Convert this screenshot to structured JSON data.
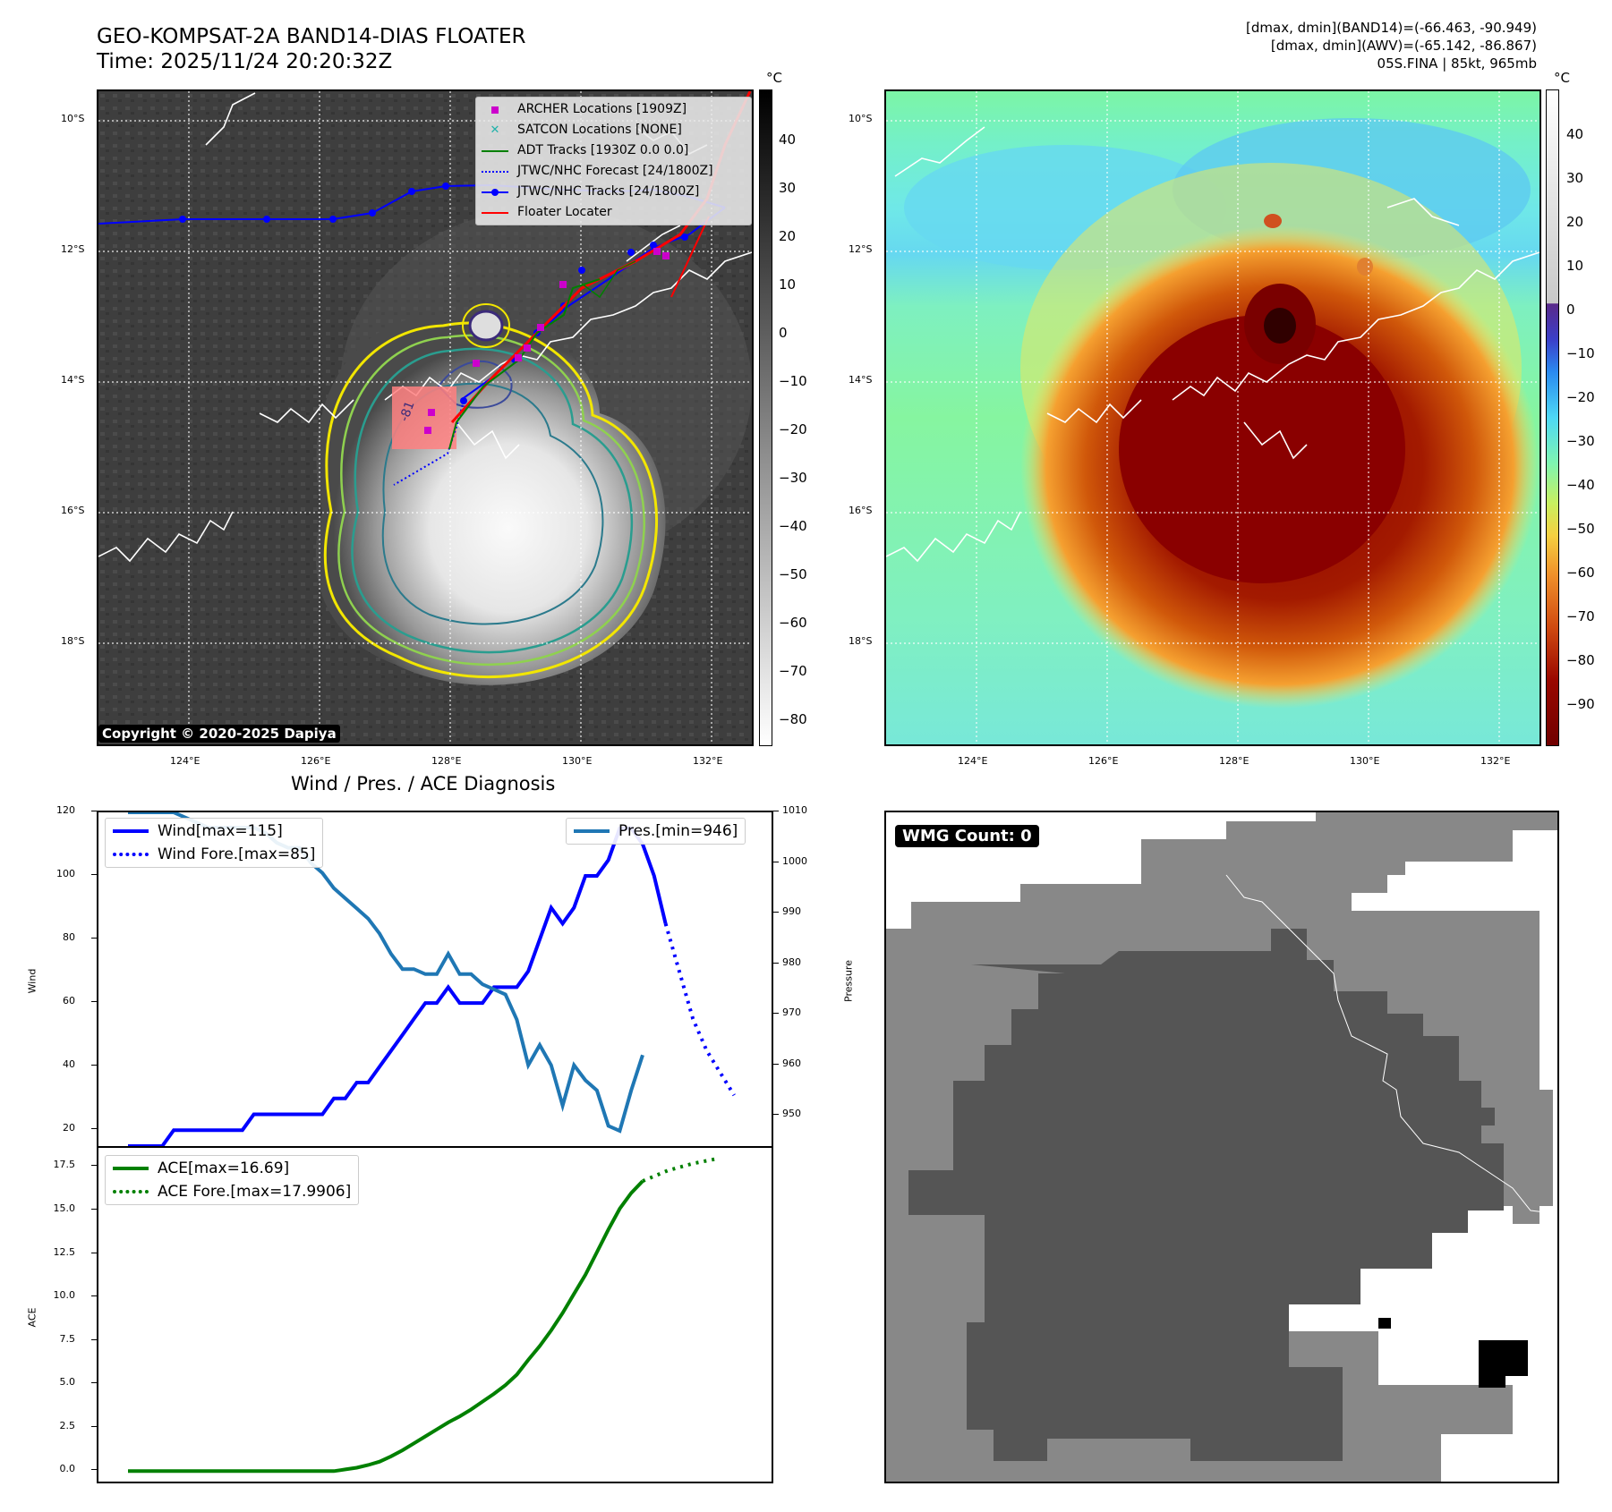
{
  "header": {
    "title_line1": "GEO-KOMPSAT-2A BAND14-DIAS FLOATER",
    "title_line2": "Time: 2025/11/24 20:20:32Z",
    "info_line1": "[dmax, dmin](BAND14)=(-66.463, -90.949)",
    "info_line2": "[dmax, dmin](AWV)=(-65.142, -86.867)",
    "info_line3": "05S.FINA | 85kt, 965mb"
  },
  "map_axes": {
    "lat_labels": [
      "10°S",
      "12°S",
      "14°S",
      "16°S",
      "18°S"
    ],
    "lon_labels": [
      "124°E",
      "126°E",
      "128°E",
      "130°E",
      "132°E"
    ]
  },
  "ir_panel": {
    "unit": "°C",
    "colorbar_ticks": [
      "40",
      "30",
      "20",
      "10",
      "0",
      "−10",
      "−20",
      "−30",
      "−40",
      "−50",
      "−60",
      "−70",
      "−80"
    ],
    "copyright": "Copyright © 2020-2025 Dapiya",
    "contour_label": "-81",
    "legend": [
      {
        "label": "ARCHER Locations [1909Z]",
        "icon": "square-marker",
        "color": "#cc00cc"
      },
      {
        "label": "SATCON Locations [NONE]",
        "icon": "x-marker",
        "color": "#20b2aa"
      },
      {
        "label": "ADT Tracks [1930Z 0.0 0.0]",
        "icon": "solid-line",
        "color": "#008000"
      },
      {
        "label": "JTWC/NHC Forecast [24/1800Z]",
        "icon": "dotted-line",
        "color": "#0000ff"
      },
      {
        "label": "JTWC/NHC Tracks [24/1800Z]",
        "icon": "line-dot",
        "color": "#0000ff"
      },
      {
        "label": "Floater Locater",
        "icon": "solid-line",
        "color": "#ff0000"
      }
    ],
    "colors": {
      "archer": "#cc00cc",
      "adt": "#008000",
      "jtwc": "#0000ff",
      "floater": "#ff0000"
    }
  },
  "wv_panel": {
    "unit": "°C",
    "colorbar_ticks": [
      "40",
      "30",
      "20",
      "10",
      "0",
      "−10",
      "−20",
      "−30",
      "−40",
      "−50",
      "−60",
      "−70",
      "−80",
      "−90"
    ]
  },
  "diag_title": "Wind / Pres. / ACE Diagnosis",
  "chart_data": [
    {
      "type": "line",
      "title": "Wind / Pres. / ACE Diagnosis",
      "ylabel": "Wind",
      "y2label": "Pressure",
      "ylim": [
        15,
        120
      ],
      "y2lim": [
        944,
        1010
      ],
      "yticks": [
        "20",
        "40",
        "60",
        "80",
        "100",
        "120"
      ],
      "y2ticks": [
        "950",
        "960",
        "970",
        "980",
        "990",
        "1000",
        "1010"
      ],
      "series": [
        {
          "name": "Wind[max=115]",
          "axis": "left",
          "style": "solid",
          "color": "#0000ff",
          "values": [
            15,
            15,
            15,
            15,
            20,
            20,
            20,
            20,
            20,
            20,
            20,
            25,
            25,
            25,
            25,
            25,
            25,
            25,
            30,
            30,
            35,
            35,
            40,
            45,
            50,
            55,
            60,
            60,
            65,
            60,
            60,
            60,
            65,
            65,
            65,
            70,
            80,
            90,
            85,
            90,
            100,
            100,
            105,
            115,
            115,
            110,
            100,
            85
          ]
        },
        {
          "name": "Wind Fore.[max=85]",
          "axis": "left",
          "style": "dotted",
          "color": "#0000ff",
          "start_index": 47,
          "values": [
            85,
            70,
            55,
            45,
            38,
            31
          ]
        },
        {
          "name": "Pres.[min=946]",
          "axis": "right",
          "style": "solid",
          "color": "#1f77b4",
          "values": [
            1010,
            1010,
            1010,
            1010,
            1010,
            1009,
            1008,
            1007,
            1007,
            1007,
            1007,
            1007,
            1006,
            1004,
            1003,
            1003,
            1000,
            998,
            995,
            993,
            991,
            989,
            986,
            982,
            979,
            979,
            978,
            978,
            982,
            978,
            978,
            976,
            975,
            974,
            969,
            960,
            964,
            960,
            952,
            960,
            957,
            955,
            948,
            947,
            955,
            962
          ]
        }
      ]
    },
    {
      "type": "line",
      "ylabel": "ACE",
      "ylim": [
        -0.6,
        18.6
      ],
      "yticks": [
        "0.0",
        "2.5",
        "5.0",
        "7.5",
        "10.0",
        "12.5",
        "15.0",
        "17.5"
      ],
      "series": [
        {
          "name": "ACE[max=16.69]",
          "style": "solid",
          "color": "#008000",
          "values": [
            0,
            0,
            0,
            0,
            0,
            0,
            0,
            0,
            0,
            0,
            0,
            0,
            0,
            0,
            0,
            0,
            0,
            0,
            0,
            0.1,
            0.2,
            0.35,
            0.55,
            0.85,
            1.2,
            1.6,
            2.0,
            2.4,
            2.8,
            3.15,
            3.55,
            4.0,
            4.45,
            4.95,
            5.55,
            6.4,
            7.2,
            8.1,
            9.1,
            10.2,
            11.3,
            12.6,
            13.9,
            15.1,
            16.0,
            16.69
          ]
        },
        {
          "name": "ACE Fore.[max=17.9906]",
          "style": "dotted",
          "color": "#008000",
          "start_index": 45,
          "values": [
            16.69,
            17.3,
            17.7,
            17.99
          ]
        }
      ]
    }
  ],
  "wmg_panel": {
    "label": "WMG Count: 0"
  }
}
